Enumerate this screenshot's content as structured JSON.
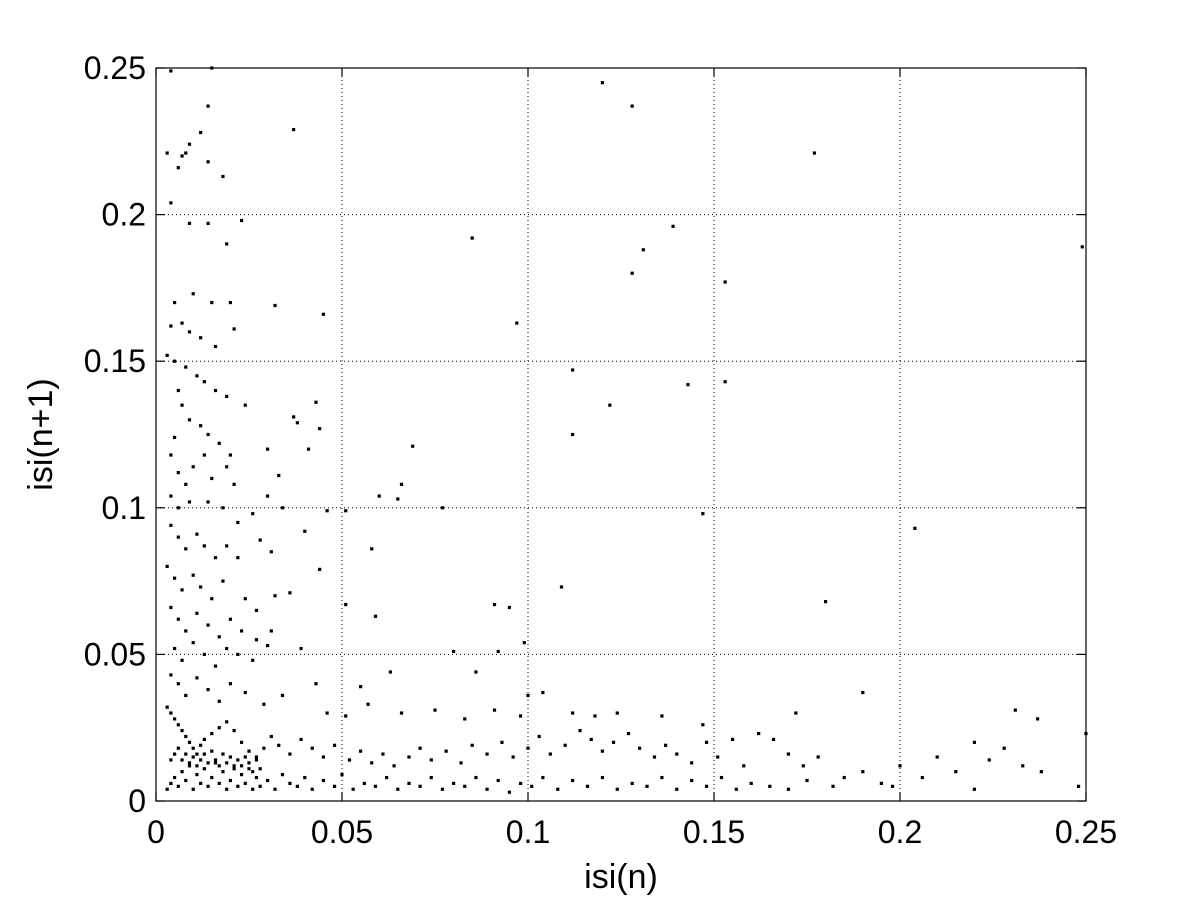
{
  "chart_data": {
    "type": "scatter",
    "title": "",
    "xlabel": "isi(n)",
    "ylabel": "isi(n+1)",
    "xlim": [
      0,
      0.25
    ],
    "ylim": [
      0,
      0.25
    ],
    "grid": true,
    "legend": "none",
    "marker_color": "#000000",
    "x_ticks": [
      {
        "value": 0,
        "label": "0"
      },
      {
        "value": 0.05,
        "label": "0.05"
      },
      {
        "value": 0.1,
        "label": "0.1"
      },
      {
        "value": 0.15,
        "label": "0.15"
      },
      {
        "value": 0.2,
        "label": "0.2"
      },
      {
        "value": 0.25,
        "label": "0.25"
      }
    ],
    "y_ticks": [
      {
        "value": 0,
        "label": "0"
      },
      {
        "value": 0.05,
        "label": "0.05"
      },
      {
        "value": 0.1,
        "label": "0.1"
      },
      {
        "value": 0.15,
        "label": "0.15"
      },
      {
        "value": 0.2,
        "label": "0.2"
      },
      {
        "value": 0.25,
        "label": "0.25"
      }
    ],
    "points": [
      [
        0.004,
        0.249
      ],
      [
        0.015,
        0.25
      ],
      [
        0.003,
        0.221
      ],
      [
        0.006,
        0.216
      ],
      [
        0.007,
        0.22
      ],
      [
        0.008,
        0.221
      ],
      [
        0.009,
        0.224
      ],
      [
        0.012,
        0.228
      ],
      [
        0.014,
        0.237
      ],
      [
        0.014,
        0.218
      ],
      [
        0.018,
        0.213
      ],
      [
        0.004,
        0.204
      ],
      [
        0.009,
        0.197
      ],
      [
        0.014,
        0.197
      ],
      [
        0.019,
        0.19
      ],
      [
        0.023,
        0.198
      ],
      [
        0.037,
        0.229
      ],
      [
        0.12,
        0.245
      ],
      [
        0.128,
        0.237
      ],
      [
        0.177,
        0.221
      ],
      [
        0.085,
        0.192
      ],
      [
        0.131,
        0.188
      ],
      [
        0.139,
        0.196
      ],
      [
        0.128,
        0.18
      ],
      [
        0.153,
        0.177
      ],
      [
        0.249,
        0.189
      ],
      [
        0.097,
        0.163
      ],
      [
        0.112,
        0.147
      ],
      [
        0.122,
        0.135
      ],
      [
        0.143,
        0.142
      ],
      [
        0.153,
        0.143
      ],
      [
        0.112,
        0.125
      ],
      [
        0.147,
        0.098
      ],
      [
        0.204,
        0.093
      ],
      [
        0.109,
        0.073
      ],
      [
        0.18,
        0.068
      ],
      [
        0.005,
        0.17
      ],
      [
        0.01,
        0.173
      ],
      [
        0.015,
        0.17
      ],
      [
        0.02,
        0.17
      ],
      [
        0.032,
        0.169
      ],
      [
        0.045,
        0.166
      ],
      [
        0.004,
        0.162
      ],
      [
        0.007,
        0.163
      ],
      [
        0.009,
        0.16
      ],
      [
        0.012,
        0.158
      ],
      [
        0.016,
        0.155
      ],
      [
        0.021,
        0.161
      ],
      [
        0.003,
        0.152
      ],
      [
        0.005,
        0.15
      ],
      [
        0.008,
        0.148
      ],
      [
        0.011,
        0.145
      ],
      [
        0.013,
        0.143
      ],
      [
        0.016,
        0.14
      ],
      [
        0.019,
        0.138
      ],
      [
        0.024,
        0.135
      ],
      [
        0.006,
        0.14
      ],
      [
        0.007,
        0.135
      ],
      [
        0.009,
        0.13
      ],
      [
        0.012,
        0.128
      ],
      [
        0.014,
        0.125
      ],
      [
        0.017,
        0.122
      ],
      [
        0.02,
        0.118
      ],
      [
        0.005,
        0.124
      ],
      [
        0.004,
        0.118
      ],
      [
        0.006,
        0.112
      ],
      [
        0.008,
        0.108
      ],
      [
        0.01,
        0.114
      ],
      [
        0.013,
        0.118
      ],
      [
        0.015,
        0.11
      ],
      [
        0.019,
        0.114
      ],
      [
        0.021,
        0.108
      ],
      [
        0.004,
        0.104
      ],
      [
        0.006,
        0.1
      ],
      [
        0.009,
        0.102
      ],
      [
        0.014,
        0.102
      ],
      [
        0.018,
        0.1
      ],
      [
        0.022,
        0.095
      ],
      [
        0.026,
        0.098
      ],
      [
        0.03,
        0.104
      ],
      [
        0.034,
        0.1
      ],
      [
        0.037,
        0.131
      ],
      [
        0.038,
        0.129
      ],
      [
        0.043,
        0.136
      ],
      [
        0.044,
        0.127
      ],
      [
        0.041,
        0.12
      ],
      [
        0.03,
        0.12
      ],
      [
        0.033,
        0.111
      ],
      [
        0.04,
        0.092
      ],
      [
        0.046,
        0.099
      ],
      [
        0.051,
        0.099
      ],
      [
        0.004,
        0.094
      ],
      [
        0.006,
        0.09
      ],
      [
        0.008,
        0.086
      ],
      [
        0.011,
        0.091
      ],
      [
        0.013,
        0.087
      ],
      [
        0.016,
        0.083
      ],
      [
        0.019,
        0.087
      ],
      [
        0.022,
        0.083
      ],
      [
        0.028,
        0.089
      ],
      [
        0.031,
        0.085
      ],
      [
        0.003,
        0.08
      ],
      [
        0.005,
        0.076
      ],
      [
        0.007,
        0.072
      ],
      [
        0.01,
        0.077
      ],
      [
        0.012,
        0.073
      ],
      [
        0.015,
        0.069
      ],
      [
        0.018,
        0.075
      ],
      [
        0.024,
        0.069
      ],
      [
        0.027,
        0.065
      ],
      [
        0.032,
        0.07
      ],
      [
        0.036,
        0.071
      ],
      [
        0.044,
        0.079
      ],
      [
        0.058,
        0.086
      ],
      [
        0.06,
        0.104
      ],
      [
        0.066,
        0.108
      ],
      [
        0.069,
        0.121
      ],
      [
        0.065,
        0.103
      ],
      [
        0.077,
        0.1
      ],
      [
        0.004,
        0.066
      ],
      [
        0.006,
        0.062
      ],
      [
        0.008,
        0.058
      ],
      [
        0.011,
        0.064
      ],
      [
        0.014,
        0.06
      ],
      [
        0.017,
        0.056
      ],
      [
        0.02,
        0.062
      ],
      [
        0.023,
        0.058
      ],
      [
        0.027,
        0.055
      ],
      [
        0.031,
        0.058
      ],
      [
        0.005,
        0.052
      ],
      [
        0.007,
        0.048
      ],
      [
        0.01,
        0.054
      ],
      [
        0.013,
        0.05
      ],
      [
        0.016,
        0.046
      ],
      [
        0.019,
        0.052
      ],
      [
        0.022,
        0.05
      ],
      [
        0.026,
        0.048
      ],
      [
        0.03,
        0.053
      ],
      [
        0.039,
        0.052
      ],
      [
        0.051,
        0.067
      ],
      [
        0.059,
        0.063
      ],
      [
        0.08,
        0.051
      ],
      [
        0.091,
        0.067
      ],
      [
        0.095,
        0.066
      ],
      [
        0.099,
        0.054
      ],
      [
        0.092,
        0.051
      ],
      [
        0.004,
        0.043
      ],
      [
        0.006,
        0.04
      ],
      [
        0.008,
        0.036
      ],
      [
        0.011,
        0.042
      ],
      [
        0.014,
        0.038
      ],
      [
        0.017,
        0.034
      ],
      [
        0.02,
        0.04
      ],
      [
        0.024,
        0.037
      ],
      [
        0.029,
        0.033
      ],
      [
        0.034,
        0.036
      ],
      [
        0.043,
        0.04
      ],
      [
        0.046,
        0.03
      ],
      [
        0.051,
        0.029
      ],
      [
        0.055,
        0.039
      ],
      [
        0.057,
        0.033
      ],
      [
        0.063,
        0.044
      ],
      [
        0.066,
        0.03
      ],
      [
        0.075,
        0.031
      ],
      [
        0.083,
        0.028
      ],
      [
        0.086,
        0.044
      ],
      [
        0.091,
        0.031
      ],
      [
        0.098,
        0.029
      ],
      [
        0.1,
        0.036
      ],
      [
        0.104,
        0.037
      ],
      [
        0.112,
        0.03
      ],
      [
        0.118,
        0.029
      ],
      [
        0.124,
        0.03
      ],
      [
        0.136,
        0.029
      ],
      [
        0.147,
        0.026
      ],
      [
        0.172,
        0.03
      ],
      [
        0.19,
        0.037
      ],
      [
        0.231,
        0.031
      ],
      [
        0.237,
        0.028
      ],
      [
        0.25,
        0.023
      ],
      [
        0.003,
        0.032
      ],
      [
        0.004,
        0.03
      ],
      [
        0.005,
        0.028
      ],
      [
        0.006,
        0.026
      ],
      [
        0.007,
        0.024
      ],
      [
        0.008,
        0.022
      ],
      [
        0.009,
        0.02
      ],
      [
        0.01,
        0.018
      ],
      [
        0.011,
        0.016
      ],
      [
        0.012,
        0.019
      ],
      [
        0.013,
        0.021
      ],
      [
        0.015,
        0.023
      ],
      [
        0.017,
        0.025
      ],
      [
        0.019,
        0.027
      ],
      [
        0.021,
        0.024
      ],
      [
        0.023,
        0.02
      ],
      [
        0.025,
        0.017
      ],
      [
        0.027,
        0.015
      ],
      [
        0.029,
        0.018
      ],
      [
        0.031,
        0.022
      ],
      [
        0.033,
        0.019
      ],
      [
        0.036,
        0.016
      ],
      [
        0.039,
        0.021
      ],
      [
        0.042,
        0.018
      ],
      [
        0.045,
        0.015
      ],
      [
        0.048,
        0.019
      ],
      [
        0.052,
        0.014
      ],
      [
        0.055,
        0.017
      ],
      [
        0.058,
        0.013
      ],
      [
        0.061,
        0.016
      ],
      [
        0.064,
        0.012
      ],
      [
        0.068,
        0.015
      ],
      [
        0.071,
        0.018
      ],
      [
        0.074,
        0.014
      ],
      [
        0.078,
        0.017
      ],
      [
        0.082,
        0.013
      ],
      [
        0.085,
        0.019
      ],
      [
        0.089,
        0.016
      ],
      [
        0.093,
        0.02
      ],
      [
        0.096,
        0.015
      ],
      [
        0.1,
        0.018
      ],
      [
        0.103,
        0.022
      ],
      [
        0.106,
        0.016
      ],
      [
        0.11,
        0.019
      ],
      [
        0.114,
        0.024
      ],
      [
        0.117,
        0.021
      ],
      [
        0.12,
        0.017
      ],
      [
        0.123,
        0.02
      ],
      [
        0.127,
        0.023
      ],
      [
        0.13,
        0.018
      ],
      [
        0.134,
        0.015
      ],
      [
        0.137,
        0.019
      ],
      [
        0.14,
        0.016
      ],
      [
        0.144,
        0.013
      ],
      [
        0.148,
        0.02
      ],
      [
        0.151,
        0.015
      ],
      [
        0.155,
        0.021
      ],
      [
        0.158,
        0.012
      ],
      [
        0.162,
        0.023
      ],
      [
        0.166,
        0.021
      ],
      [
        0.17,
        0.016
      ],
      [
        0.174,
        0.012
      ],
      [
        0.178,
        0.015
      ],
      [
        0.185,
        0.008
      ],
      [
        0.19,
        0.01
      ],
      [
        0.195,
        0.006
      ],
      [
        0.2,
        0.012
      ],
      [
        0.206,
        0.008
      ],
      [
        0.21,
        0.015
      ],
      [
        0.215,
        0.01
      ],
      [
        0.22,
        0.02
      ],
      [
        0.224,
        0.014
      ],
      [
        0.228,
        0.018
      ],
      [
        0.233,
        0.012
      ],
      [
        0.238,
        0.01
      ],
      [
        0.248,
        0.005
      ],
      [
        0.003,
        0.004
      ],
      [
        0.004,
        0.006
      ],
      [
        0.005,
        0.008
      ],
      [
        0.006,
        0.005
      ],
      [
        0.007,
        0.01
      ],
      [
        0.008,
        0.007
      ],
      [
        0.009,
        0.012
      ],
      [
        0.01,
        0.004
      ],
      [
        0.011,
        0.009
      ],
      [
        0.012,
        0.006
      ],
      [
        0.013,
        0.011
      ],
      [
        0.014,
        0.005
      ],
      [
        0.015,
        0.008
      ],
      [
        0.016,
        0.013
      ],
      [
        0.017,
        0.006
      ],
      [
        0.018,
        0.01
      ],
      [
        0.019,
        0.004
      ],
      [
        0.02,
        0.007
      ],
      [
        0.021,
        0.012
      ],
      [
        0.022,
        0.005
      ],
      [
        0.023,
        0.009
      ],
      [
        0.024,
        0.006
      ],
      [
        0.025,
        0.011
      ],
      [
        0.026,
        0.004
      ],
      [
        0.027,
        0.008
      ],
      [
        0.028,
        0.005
      ],
      [
        0.03,
        0.007
      ],
      [
        0.032,
        0.004
      ],
      [
        0.034,
        0.009
      ],
      [
        0.036,
        0.006
      ],
      [
        0.038,
        0.005
      ],
      [
        0.04,
        0.008
      ],
      [
        0.042,
        0.004
      ],
      [
        0.045,
        0.007
      ],
      [
        0.048,
        0.005
      ],
      [
        0.05,
        0.009
      ],
      [
        0.053,
        0.004
      ],
      [
        0.056,
        0.006
      ],
      [
        0.059,
        0.005
      ],
      [
        0.062,
        0.008
      ],
      [
        0.065,
        0.004
      ],
      [
        0.068,
        0.006
      ],
      [
        0.071,
        0.005
      ],
      [
        0.074,
        0.008
      ],
      [
        0.077,
        0.004
      ],
      [
        0.08,
        0.006
      ],
      [
        0.083,
        0.005
      ],
      [
        0.086,
        0.008
      ],
      [
        0.089,
        0.004
      ],
      [
        0.092,
        0.007
      ],
      [
        0.095,
        0.003
      ],
      [
        0.098,
        0.006
      ],
      [
        0.101,
        0.005
      ],
      [
        0.104,
        0.008
      ],
      [
        0.108,
        0.004
      ],
      [
        0.112,
        0.007
      ],
      [
        0.116,
        0.005
      ],
      [
        0.12,
        0.008
      ],
      [
        0.124,
        0.004
      ],
      [
        0.128,
        0.006
      ],
      [
        0.132,
        0.005
      ],
      [
        0.136,
        0.008
      ],
      [
        0.14,
        0.004
      ],
      [
        0.144,
        0.007
      ],
      [
        0.148,
        0.005
      ],
      [
        0.152,
        0.008
      ],
      [
        0.156,
        0.004
      ],
      [
        0.16,
        0.006
      ],
      [
        0.165,
        0.005
      ],
      [
        0.17,
        0.004
      ],
      [
        0.175,
        0.007
      ],
      [
        0.182,
        0.005
      ],
      [
        0.198,
        0.005
      ],
      [
        0.22,
        0.004
      ],
      [
        0.004,
        0.014
      ],
      [
        0.005,
        0.016
      ],
      [
        0.006,
        0.018
      ],
      [
        0.007,
        0.014
      ],
      [
        0.008,
        0.016
      ],
      [
        0.009,
        0.013
      ],
      [
        0.01,
        0.015
      ],
      [
        0.011,
        0.012
      ],
      [
        0.012,
        0.014
      ],
      [
        0.013,
        0.016
      ],
      [
        0.014,
        0.013
      ],
      [
        0.015,
        0.017
      ],
      [
        0.016,
        0.014
      ],
      [
        0.017,
        0.012
      ],
      [
        0.018,
        0.016
      ],
      [
        0.019,
        0.013
      ],
      [
        0.02,
        0.015
      ],
      [
        0.021,
        0.011
      ],
      [
        0.022,
        0.014
      ],
      [
        0.023,
        0.012
      ],
      [
        0.024,
        0.015
      ],
      [
        0.025,
        0.013
      ],
      [
        0.026,
        0.01
      ],
      [
        0.027,
        0.014
      ],
      [
        0.028,
        0.011
      ]
    ]
  }
}
